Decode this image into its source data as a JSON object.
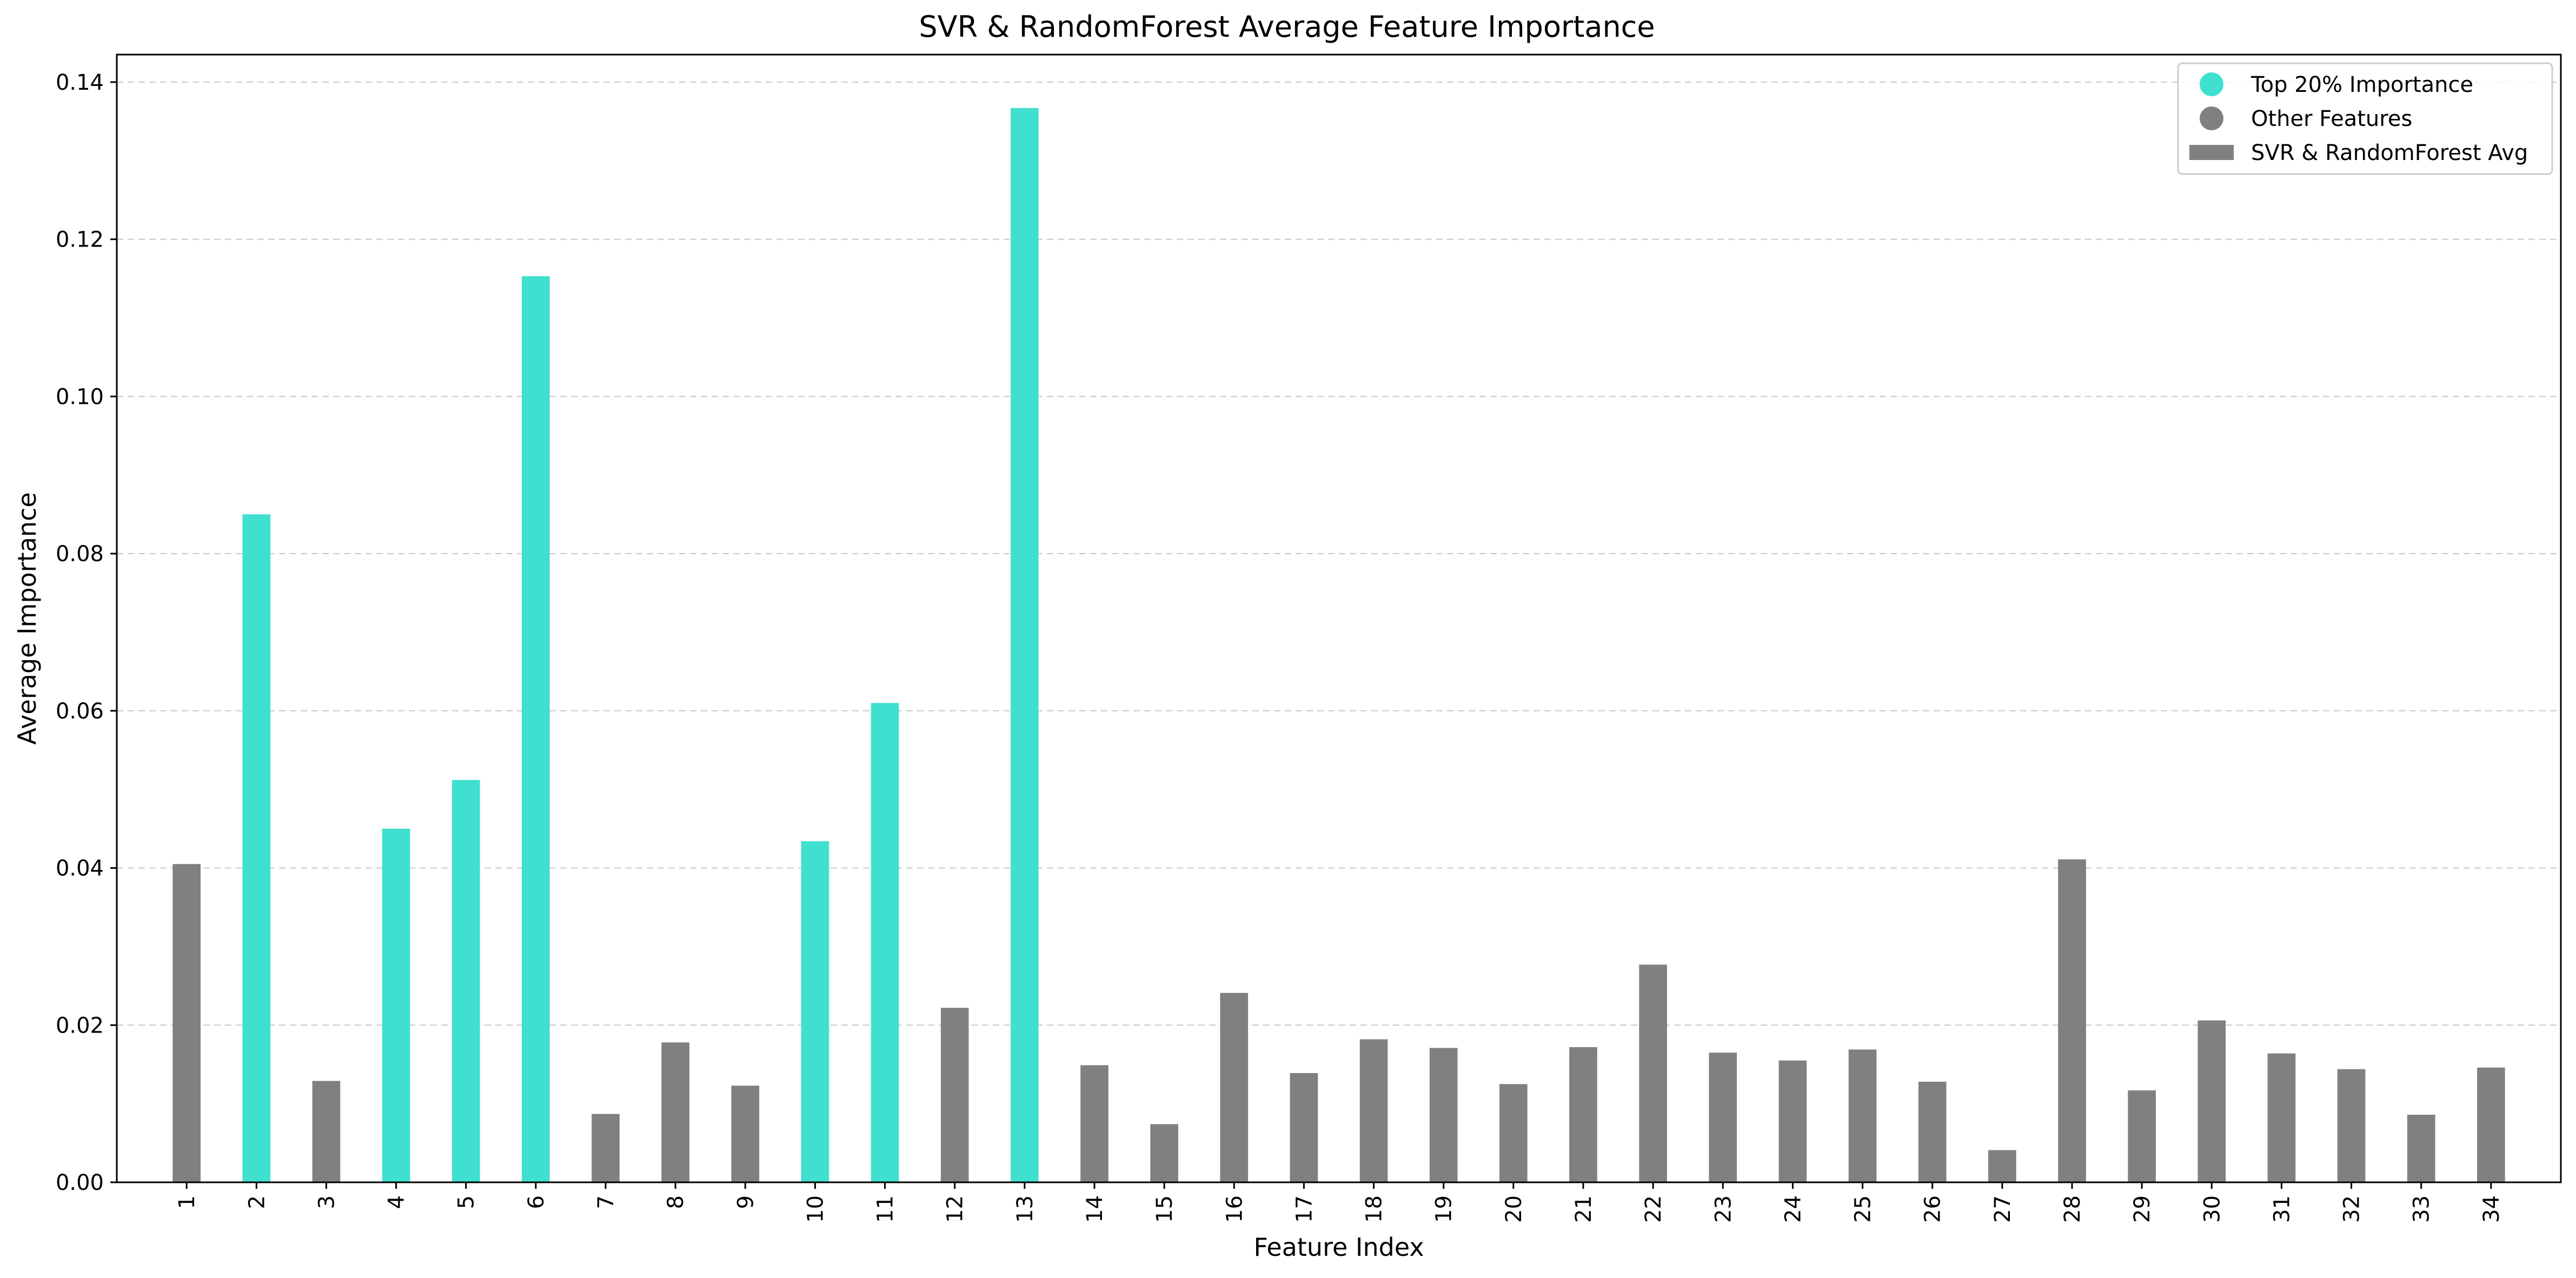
{
  "chart_data": {
    "type": "bar",
    "title": "SVR & RandomForest Average Feature Importance",
    "xlabel": "Feature Index",
    "ylabel": "Average Importance",
    "ylim": [
      0,
      0.1435
    ],
    "yticks": [
      "0.00",
      "0.02",
      "0.04",
      "0.06",
      "0.08",
      "0.10",
      "0.12",
      "0.14"
    ],
    "ytick_values": [
      0,
      0.02,
      0.04,
      0.06,
      0.08,
      0.1,
      0.12,
      0.14
    ],
    "grid": "y, dashed",
    "legend_position": "top-right",
    "categories": [
      "1",
      "2",
      "3",
      "4",
      "5",
      "6",
      "7",
      "8",
      "9",
      "10",
      "11",
      "12",
      "13",
      "14",
      "15",
      "16",
      "17",
      "18",
      "19",
      "20",
      "21",
      "22",
      "23",
      "24",
      "25",
      "26",
      "27",
      "28",
      "29",
      "30",
      "31",
      "32",
      "33",
      "34"
    ],
    "values": [
      0.0405,
      0.085,
      0.0129,
      0.045,
      0.0512,
      0.1153,
      0.0087,
      0.0178,
      0.0123,
      0.0434,
      0.061,
      0.0222,
      0.1367,
      0.0149,
      0.0074,
      0.0241,
      0.0139,
      0.0182,
      0.0171,
      0.0125,
      0.0172,
      0.0277,
      0.0165,
      0.0155,
      0.0169,
      0.0128,
      0.0041,
      0.0411,
      0.0117,
      0.0206,
      0.0164,
      0.0144,
      0.0086,
      0.0146
    ],
    "top": [
      false,
      true,
      false,
      true,
      true,
      true,
      false,
      false,
      false,
      true,
      true,
      false,
      true,
      false,
      false,
      false,
      false,
      false,
      false,
      false,
      false,
      false,
      false,
      false,
      false,
      false,
      false,
      false,
      false,
      false,
      false,
      false,
      false,
      false
    ],
    "colors": {
      "top": "#40E0D0",
      "other": "#808080"
    },
    "legend": [
      {
        "label": "Top 20% Importance",
        "marker": "circle",
        "color": "#40E0D0"
      },
      {
        "label": "Other Features",
        "marker": "circle",
        "color": "#808080"
      },
      {
        "label": "SVR & RandomForest Avg",
        "marker": "rect",
        "color": "#808080"
      }
    ]
  }
}
